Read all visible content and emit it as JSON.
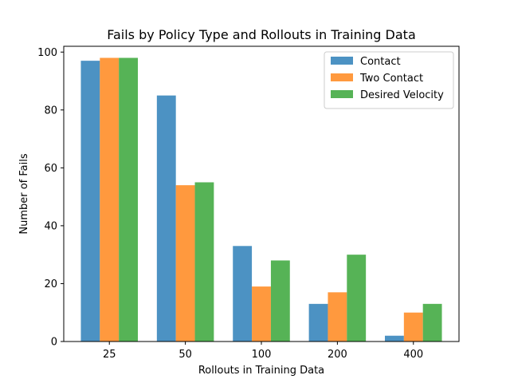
{
  "chart_data": {
    "type": "bar",
    "title": "Fails by Policy Type and Rollouts in Training Data",
    "xlabel": "Rollouts in Training Data",
    "ylabel": "Number of Fails",
    "categories": [
      "25",
      "50",
      "100",
      "200",
      "400"
    ],
    "ylim": [
      0,
      102
    ],
    "yticks": [
      0,
      20,
      40,
      60,
      80,
      100
    ],
    "grid": false,
    "legend_position": "top-right",
    "series": [
      {
        "name": "Contact",
        "color": "#1f77b4",
        "values": [
          97,
          85,
          33,
          13,
          2
        ]
      },
      {
        "name": "Two Contact",
        "color": "#ff7f0e",
        "values": [
          98,
          54,
          19,
          17,
          10
        ]
      },
      {
        "name": "Desired Velocity",
        "color": "#2ca02c",
        "values": [
          98,
          55,
          28,
          30,
          13
        ]
      }
    ]
  }
}
